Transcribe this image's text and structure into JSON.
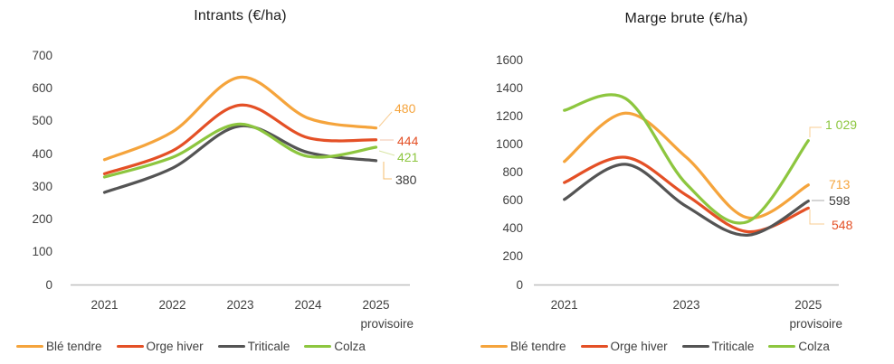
{
  "page": {
    "background_color": "#FFFFFF"
  },
  "chart_data": [
    {
      "type": "line",
      "title": "Intrants (€/ha)",
      "x_tick_labels": [
        "2021",
        "2022",
        "2023",
        "2024",
        "2025"
      ],
      "x_note": "provisoire",
      "ylim": [
        0,
        700
      ],
      "ytick_step": 100,
      "grid": false,
      "legend_position": "bottom",
      "line_style": "smooth",
      "series": [
        {
          "name": "Blé tendre",
          "color": "#F5A43C",
          "values": [
            383,
            468,
            635,
            510,
            480
          ],
          "end_label": "480"
        },
        {
          "name": "Orge hiver",
          "color": "#E45026",
          "values": [
            340,
            410,
            550,
            450,
            444
          ],
          "end_label": "444"
        },
        {
          "name": "Triticale",
          "color": "#545454",
          "values": [
            283,
            357,
            486,
            405,
            380
          ],
          "end_label": "380",
          "end_label_color": "#3A3A3A"
        },
        {
          "name": "Colza",
          "color": "#8DC63F",
          "values": [
            330,
            390,
            492,
            393,
            421
          ],
          "end_label": "421"
        }
      ]
    },
    {
      "type": "line",
      "title": "Marge brute (€/ha)",
      "x_tick_labels": [
        "2021",
        "",
        "2023",
        "",
        "2025"
      ],
      "x_note": "provisoire",
      "ylim": [
        0,
        1600
      ],
      "ytick_step": 200,
      "grid": false,
      "legend_position": "bottom",
      "line_style": "smooth",
      "series": [
        {
          "name": "Blé tendre",
          "color": "#F5A43C",
          "values": [
            880,
            1225,
            910,
            480,
            713
          ],
          "end_label": "713"
        },
        {
          "name": "Orge hiver",
          "color": "#E45026",
          "values": [
            730,
            910,
            640,
            380,
            548
          ],
          "end_label": "548"
        },
        {
          "name": "Triticale",
          "color": "#545454",
          "values": [
            610,
            860,
            560,
            355,
            598
          ],
          "end_label": "598",
          "end_label_color": "#3A3A3A"
        },
        {
          "name": "Colza",
          "color": "#8DC63F",
          "values": [
            1245,
            1330,
            720,
            450,
            1029
          ],
          "end_label": "1 029"
        }
      ]
    }
  ]
}
